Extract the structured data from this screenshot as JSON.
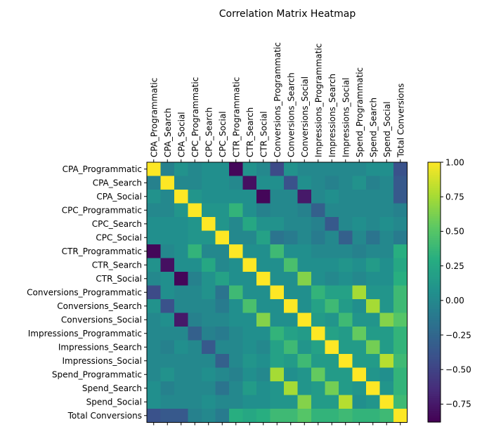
{
  "chart_data": {
    "type": "heatmap",
    "title": "Correlation Matrix Heatmap",
    "labels": [
      "CPA_Programmatic",
      "CPA_Search",
      "CPA_Social",
      "CPC_Programmatic",
      "CPC_Search",
      "CPC_Social",
      "CTR_Programmatic",
      "CTR_Search",
      "CTR_Social",
      "Conversions_Programmatic",
      "Conversions_Search",
      "Conversions_Social",
      "Impressions_Programmatic",
      "Impressions_Search",
      "Impressions_Social",
      "Spend_Programmatic",
      "Spend_Search",
      "Spend_Social",
      "Total Conversions"
    ],
    "matrix": [
      [
        1.0,
        -0.05,
        0.08,
        0.0,
        0.05,
        0.05,
        -0.85,
        0.08,
        0.0,
        -0.45,
        0.08,
        0.0,
        0.0,
        0.0,
        0.0,
        0.0,
        0.05,
        0.05,
        -0.4
      ],
      [
        -0.05,
        1.0,
        0.0,
        0.0,
        0.05,
        0.05,
        0.0,
        -0.8,
        0.05,
        0.05,
        -0.4,
        0.05,
        0.0,
        -0.05,
        0.0,
        0.08,
        -0.05,
        0.0,
        -0.35
      ],
      [
        0.08,
        0.0,
        1.0,
        0.1,
        0.05,
        0.05,
        0.05,
        0.05,
        -0.85,
        0.0,
        0.0,
        -0.75,
        0.0,
        0.05,
        0.0,
        0.0,
        0.0,
        0.0,
        -0.35
      ],
      [
        0.0,
        0.0,
        0.1,
        1.0,
        0.1,
        0.1,
        0.35,
        0.05,
        -0.05,
        0.0,
        0.0,
        -0.05,
        -0.3,
        0.0,
        0.0,
        0.0,
        0.0,
        0.0,
        -0.05
      ],
      [
        0.05,
        0.05,
        0.05,
        0.1,
        1.0,
        0.1,
        0.0,
        0.25,
        0.08,
        0.08,
        0.0,
        0.0,
        -0.05,
        -0.35,
        0.0,
        0.05,
        0.0,
        0.05,
        0.0
      ],
      [
        0.05,
        0.05,
        0.05,
        0.1,
        0.1,
        1.0,
        0.0,
        0.0,
        0.2,
        -0.15,
        -0.1,
        0.0,
        -0.1,
        0.0,
        -0.3,
        0.0,
        -0.15,
        0.0,
        -0.1
      ],
      [
        -0.85,
        0.0,
        0.05,
        0.35,
        0.0,
        0.0,
        1.0,
        0.05,
        0.05,
        0.4,
        0.05,
        0.05,
        0.0,
        0.0,
        0.0,
        -0.05,
        0.0,
        0.0,
        0.3
      ],
      [
        0.08,
        -0.8,
        0.05,
        0.05,
        0.25,
        0.0,
        0.05,
        1.0,
        0.05,
        0.05,
        0.45,
        0.05,
        0.05,
        0.05,
        0.1,
        0.05,
        0.15,
        0.05,
        0.25
      ],
      [
        0.0,
        0.05,
        -0.85,
        -0.05,
        0.08,
        0.2,
        0.05,
        0.05,
        1.0,
        0.05,
        0.05,
        0.65,
        0.05,
        0.0,
        0.05,
        0.0,
        0.05,
        0.05,
        0.3
      ],
      [
        -0.45,
        0.05,
        0.0,
        0.0,
        0.08,
        -0.15,
        0.4,
        0.05,
        0.05,
        1.0,
        0.05,
        0.05,
        0.35,
        0.2,
        0.2,
        0.75,
        0.1,
        0.1,
        0.4
      ],
      [
        0.08,
        -0.4,
        0.0,
        0.0,
        0.0,
        -0.1,
        0.05,
        0.45,
        0.05,
        0.05,
        1.0,
        0.05,
        0.2,
        0.4,
        0.15,
        0.05,
        0.75,
        0.1,
        0.4
      ],
      [
        0.0,
        0.05,
        -0.75,
        -0.05,
        0.0,
        0.0,
        0.05,
        0.05,
        0.65,
        0.05,
        0.05,
        1.0,
        0.15,
        0.1,
        0.4,
        0.1,
        0.1,
        0.65,
        0.5
      ],
      [
        0.0,
        0.0,
        0.0,
        -0.3,
        -0.05,
        -0.1,
        0.0,
        0.05,
        0.05,
        0.35,
        0.2,
        0.15,
        1.0,
        0.2,
        0.15,
        0.55,
        0.15,
        0.15,
        0.35
      ],
      [
        0.0,
        -0.05,
        0.05,
        0.0,
        -0.35,
        0.0,
        0.0,
        0.05,
        0.0,
        0.2,
        0.4,
        0.1,
        0.2,
        1.0,
        0.15,
        0.15,
        0.6,
        0.15,
        0.35
      ],
      [
        0.0,
        0.0,
        0.0,
        0.0,
        0.0,
        -0.3,
        0.0,
        0.1,
        0.05,
        0.2,
        0.15,
        0.4,
        0.15,
        0.15,
        1.0,
        0.15,
        0.15,
        0.8,
        0.4
      ],
      [
        0.0,
        0.08,
        0.0,
        0.0,
        0.05,
        0.0,
        -0.05,
        0.05,
        0.0,
        0.75,
        0.05,
        0.1,
        0.55,
        0.15,
        0.15,
        1.0,
        0.1,
        0.05,
        0.35
      ],
      [
        0.05,
        -0.05,
        0.0,
        0.0,
        0.0,
        -0.15,
        0.0,
        0.15,
        0.05,
        0.1,
        0.75,
        0.1,
        0.15,
        0.6,
        0.15,
        0.1,
        1.0,
        0.1,
        0.35
      ],
      [
        0.05,
        0.0,
        0.0,
        0.0,
        0.05,
        0.0,
        0.0,
        0.05,
        0.05,
        0.1,
        0.1,
        0.65,
        0.15,
        0.15,
        0.8,
        0.05,
        0.1,
        1.0,
        0.4
      ],
      [
        -0.4,
        -0.35,
        -0.35,
        -0.05,
        0.0,
        -0.1,
        0.3,
        0.25,
        0.3,
        0.4,
        0.4,
        0.5,
        0.35,
        0.35,
        0.4,
        0.35,
        0.35,
        0.4,
        1.0
      ]
    ],
    "colormap": "viridis",
    "vmin": -0.88,
    "vmax": 1.0,
    "colorbar_ticks": [
      -0.75,
      -0.5,
      -0.25,
      0.0,
      0.25,
      0.5,
      0.75,
      1.0
    ],
    "colorbar_tick_labels": [
      "−0.75",
      "−0.50",
      "−0.25",
      "0.00",
      "0.25",
      "0.50",
      "0.75",
      "1.00"
    ],
    "grid": false,
    "xticks_position": "top"
  }
}
